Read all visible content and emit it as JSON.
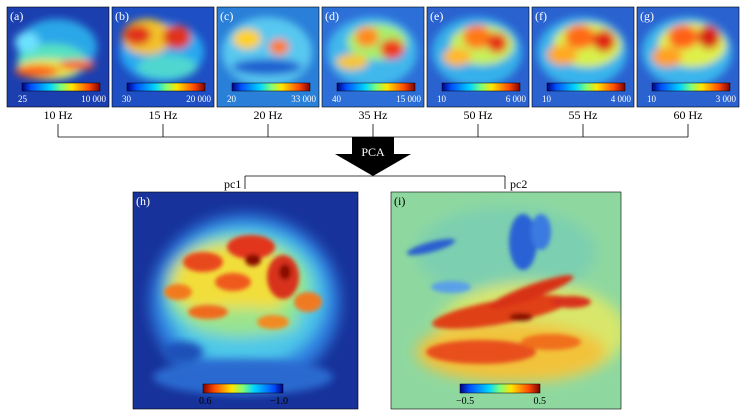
{
  "top_panels": [
    {
      "label": "(a)",
      "freq": "10 Hz",
      "cb_min": "25",
      "cb_max": "10 000"
    },
    {
      "label": "(b)",
      "freq": "15 Hz",
      "cb_min": "30",
      "cb_max": "20 000"
    },
    {
      "label": "(c)",
      "freq": "20 Hz",
      "cb_min": "20",
      "cb_max": "33 000"
    },
    {
      "label": "(d)",
      "freq": "35 Hz",
      "cb_min": "40",
      "cb_max": "15 000"
    },
    {
      "label": "(e)",
      "freq": "50 Hz",
      "cb_min": "10",
      "cb_max": "6 000"
    },
    {
      "label": "(f)",
      "freq": "55 Hz",
      "cb_min": "10",
      "cb_max": "4 000"
    },
    {
      "label": "(g)",
      "freq": "60 Hz",
      "cb_min": "10",
      "cb_max": "3 000"
    }
  ],
  "arrow_label": "PCA",
  "pc_labels": [
    "pc1",
    "pc2"
  ],
  "bottom_panels": [
    {
      "label": "(h)",
      "cb_min": "0.6",
      "cb_max": "−1.0"
    },
    {
      "label": "(i)",
      "cb_min": "−0.5",
      "cb_max": "0.5"
    }
  ],
  "colormap": [
    "#00007f",
    "#0050ff",
    "#00d4ff",
    "#7dff7a",
    "#ffe600",
    "#ff4a00",
    "#800000"
  ]
}
